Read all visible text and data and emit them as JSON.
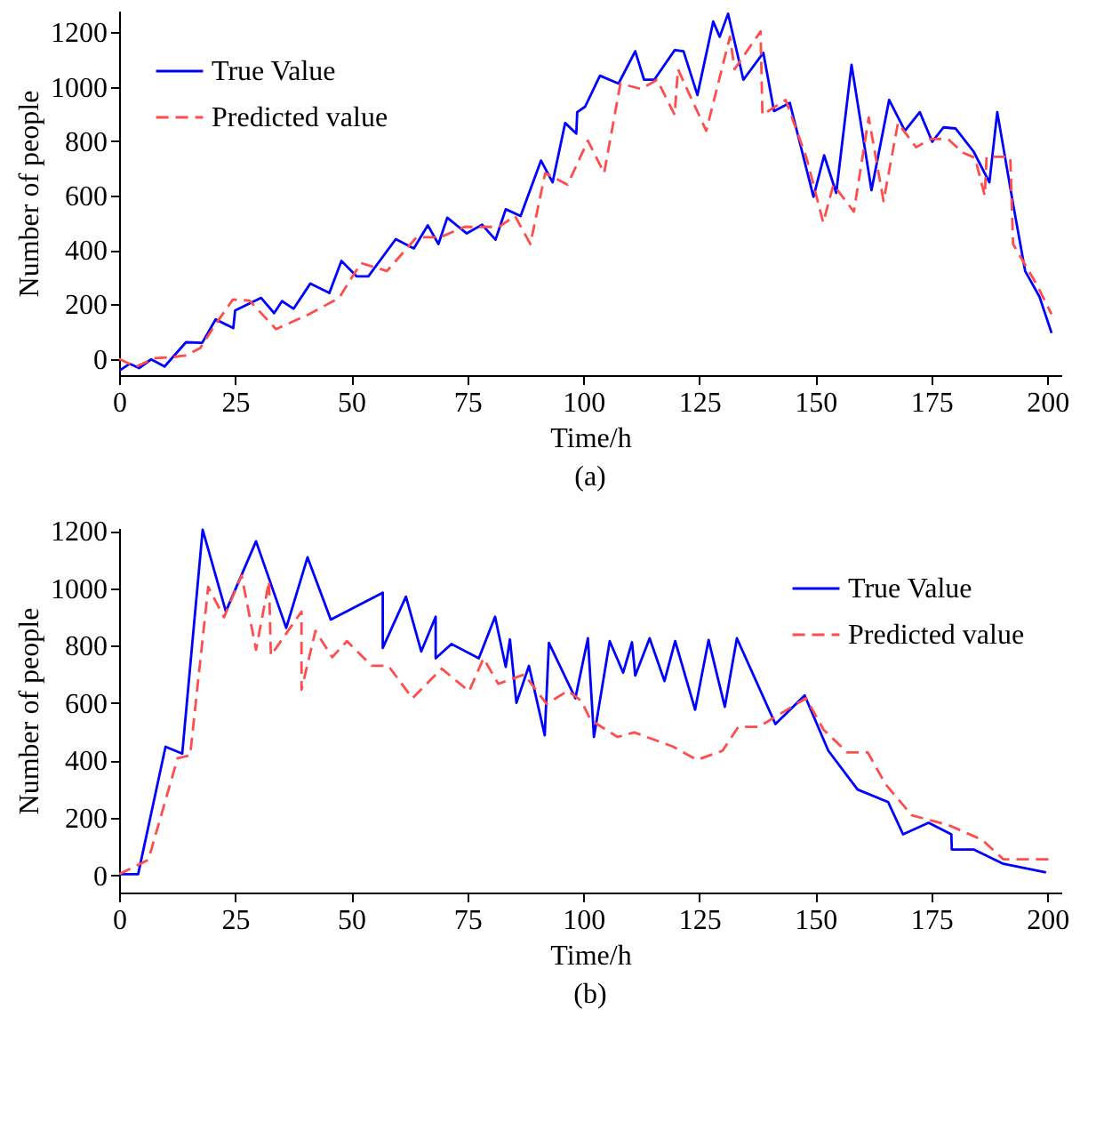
{
  "chart_data": [
    {
      "type": "line",
      "xlabel": "Time/h",
      "ylabel": "Number of people",
      "annotations": [
        "(a)"
      ],
      "xlim": [
        0,
        203
      ],
      "ylim": [
        -60,
        1280
      ],
      "xticks": [
        0,
        25,
        50,
        75,
        100,
        125,
        150,
        175,
        200
      ],
      "yticks": [
        0,
        200,
        400,
        600,
        800,
        1000,
        1200
      ],
      "grid": false,
      "legend": "top left",
      "series": [
        {
          "name": "True Value",
          "color": "#0000ff",
          "line_style": "solid",
          "x": [
            0,
            2.3,
            4.3,
            6.9,
            9.8,
            14.4,
            17.9,
            20.8,
            24.6,
            25,
            30.6,
            33.4,
            35.1,
            37.6,
            41.2,
            45.3,
            47.9,
            51.2,
            53.7,
            59.6,
            63.5,
            66.5,
            68.8,
            70.7,
            74.9,
            78.2,
            81.1,
            83.3,
            86.5,
            90.9,
            93.4,
            96.1,
            98.5,
            98.7,
            100.4,
            103.6,
            107.6,
            111.2,
            113.1,
            115.3,
            119.7,
            121.6,
            124.6,
            128,
            129.4,
            131.2,
            134.5,
            138.8,
            141.1,
            144.5,
            149.6,
            151.9,
            154.5,
            157.8,
            162.1,
            165.9,
            169.3,
            172.5,
            175.2,
            177.6,
            180.2,
            184.1,
            187.5,
            189.2,
            192.6,
            195.2,
            198.3,
            200.9
          ],
          "values": [
            -44,
            -18,
            -34,
            -2,
            -28,
            61,
            59,
            145,
            113,
            178,
            224,
            168,
            212,
            184,
            277,
            242,
            360,
            303,
            303,
            440,
            406,
            491,
            422,
            519,
            461,
            493,
            438,
            550,
            525,
            729,
            649,
            867,
            828,
            907,
            927,
            1041,
            1012,
            1131,
            1026,
            1026,
            1135,
            1131,
            970,
            1240,
            1184,
            1269,
            1026,
            1125,
            911,
            941,
            596,
            748,
            610,
            1081,
            620,
            952,
            838,
            907,
            798,
            851,
            847,
            762,
            649,
            907,
            570,
            323,
            228,
            95
          ]
        },
        {
          "name": "Predicted value",
          "color": "#ff4d4d",
          "line_style": "dashed",
          "x": [
            0,
            3.6,
            7.5,
            11.3,
            14.3,
            17.5,
            20.3,
            24.5,
            28.1,
            33.8,
            40.9,
            47.4,
            52.1,
            57.7,
            64.1,
            69.2,
            74.4,
            81.8,
            85.3,
            88.6,
            91.8,
            96.6,
            101,
            104.5,
            108,
            112.5,
            115.9,
            119.7,
            120.4,
            126.5,
            131.6,
            132.6,
            138.2,
            138.6,
            143.6,
            148.1,
            151.7,
            153.9,
            158.3,
            161.5,
            164.7,
            167.8,
            171.7,
            174.8,
            178.6,
            181.8,
            184.4,
            186.5,
            186.9,
            192,
            192.6,
            197.7,
            200.9
          ],
          "values": [
            0,
            -30,
            2,
            6,
            12,
            40,
            115,
            218,
            214,
            109,
            164,
            224,
            352,
            323,
            447,
            447,
            485,
            485,
            525,
            422,
            683,
            640,
            802,
            683,
            1012,
            992,
            1026,
            897,
            1065,
            838,
            1184,
            1065,
            1204,
            897,
            952,
            739,
            501,
            640,
            541,
            887,
            580,
            867,
            778,
            808,
            808,
            758,
            739,
            600,
            743,
            743,
            422,
            273,
            164
          ]
        }
      ]
    },
    {
      "type": "line",
      "xlabel": "Time/h",
      "ylabel": "Number of people",
      "annotations": [
        "(b)"
      ],
      "xlim": [
        0,
        203
      ],
      "ylim": [
        -60,
        1210
      ],
      "xticks": [
        0,
        25,
        50,
        75,
        100,
        125,
        150,
        175,
        200
      ],
      "yticks": [
        0,
        200,
        400,
        600,
        800,
        1000,
        1200
      ],
      "grid": false,
      "legend": "top right",
      "series": [
        {
          "name": "True Value",
          "color": "#0000ff",
          "line_style": "solid",
          "x": [
            0,
            4.1,
            10,
            13.6,
            18,
            23,
            29.5,
            36,
            40.6,
            45.6,
            56.8,
            56.8,
            61.8,
            65.1,
            68.2,
            68.2,
            71.6,
            77.5,
            81,
            83.3,
            84.2,
            85.6,
            88.3,
            91.7,
            92.6,
            98.3,
            101,
            102.3,
            105.7,
            108.6,
            110.5,
            111.2,
            114.3,
            117.5,
            119.8,
            124.1,
            127,
            130.5,
            133.1,
            141.4,
            147.7,
            152.8,
            159.1,
            165.7,
            168.9,
            174.4,
            179.3,
            179.4,
            184.1,
            190.5,
            199.7
          ],
          "values": [
            4,
            4,
            448,
            424,
            1204,
            919,
            1164,
            862,
            1108,
            891,
            985,
            792,
            971,
            780,
            901,
            756,
            806,
            756,
            901,
            726,
            822,
            601,
            730,
            488,
            810,
            617,
            826,
            482,
            816,
            706,
            812,
            696,
            826,
            677,
            816,
            577,
            820,
            587,
            826,
            527,
            627,
            434,
            299,
            255,
            143,
            183,
            143,
            90,
            90,
            40,
            10
          ]
        },
        {
          "name": "Predicted value",
          "color": "#ff4d4d",
          "line_style": "dashed",
          "x": [
            0,
            6.3,
            12.6,
            15.3,
            19.2,
            22.6,
            26.4,
            29.5,
            32.3,
            32.7,
            39.3,
            39.3,
            42.3,
            45.9,
            49.1,
            54.4,
            58,
            63.2,
            69.5,
            75.4,
            78.5,
            81.7,
            87.3,
            92.1,
            96.7,
            99.6,
            101.6,
            107.4,
            111,
            119.4,
            124.5,
            130,
            133.4,
            137.8,
            148,
            151.8,
            156.9,
            161.3,
            165.1,
            170.8,
            178.7,
            186,
            190.5,
            201
          ],
          "values": [
            4,
            54,
            408,
            418,
            1005,
            899,
            1045,
            786,
            1025,
            766,
            919,
            647,
            852,
            760,
            816,
            730,
            730,
            617,
            720,
            641,
            756,
            667,
            700,
            597,
            643,
            607,
            541,
            482,
            498,
            448,
            402,
            434,
            517,
            517,
            617,
            507,
            428,
            428,
            318,
            209,
            175,
            123,
            56,
            56
          ]
        }
      ]
    }
  ]
}
